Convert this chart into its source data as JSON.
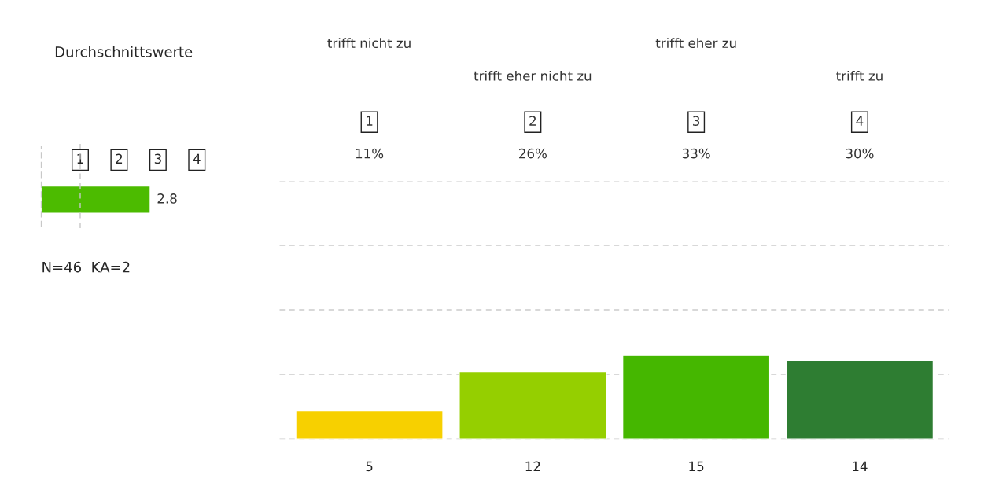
{
  "chart_data": [
    {
      "type": "bar",
      "orientation": "horizontal",
      "title": "Durchschnittswerte",
      "categories": [
        null
      ],
      "values": [
        2.8
      ],
      "color": "#4cbb00",
      "data_labels": true,
      "xlim": [
        0,
        4.2
      ],
      "xticks": [
        1,
        2,
        3,
        4
      ],
      "tick_labels": "x",
      "grid": false,
      "ref_lines": [
        {
          "axis": "x",
          "value": 1,
          "color": "#c8c8c8",
          "line_style": "dashed"
        }
      ],
      "annotations": [
        "N=46  KA=2"
      ]
    },
    {
      "type": "bar",
      "categories": [
        "1",
        "2",
        "3",
        "4"
      ],
      "values": [
        5,
        12,
        15,
        14
      ],
      "colors": [
        "#f7d000",
        "#95cf00",
        "#45b700",
        "#2e7d32"
      ],
      "data_labels": true,
      "ylim": [
        0,
        46
      ],
      "yticks": [
        {
          "value": 0,
          "label": null
        },
        {
          "value": 11.5,
          "label": null
        },
        {
          "value": 23,
          "label": null
        },
        {
          "value": 34.5,
          "label": null
        },
        {
          "value": 46,
          "label": null
        }
      ],
      "grid": "y",
      "tick_labels": "x",
      "annotations": [
        "trifft nicht zu",
        "trifft eher nicht zu",
        "trifft eher zu",
        "trifft zu",
        "11%",
        "26%",
        "33%",
        "30%"
      ]
    }
  ]
}
